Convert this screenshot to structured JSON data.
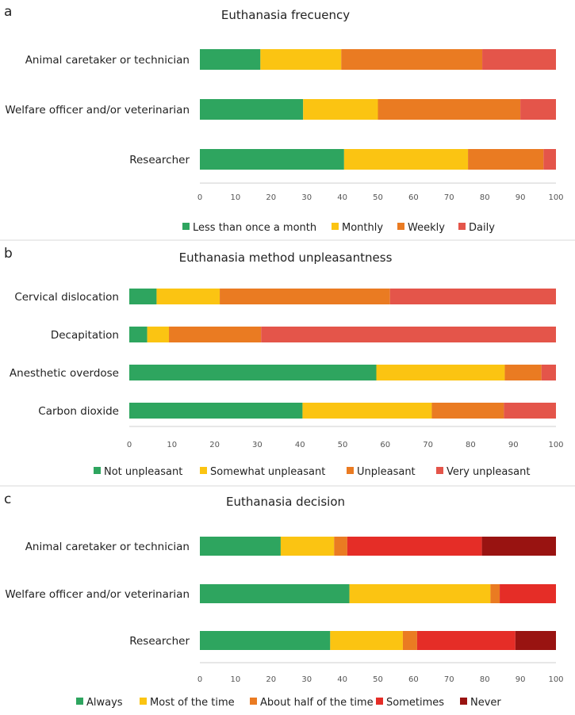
{
  "chart_data": [
    {
      "panel_letter": "a",
      "type": "bar",
      "orientation": "horizontal",
      "stacked": true,
      "title": "Euthanasia frecuency",
      "categories": [
        "Animal caretaker or technician",
        "Welfare officer and/or veterinarian",
        "Researcher"
      ],
      "series": [
        {
          "name": "Less than once a month",
          "color": "#2ea55f",
          "values": [
            17,
            29,
            40.5
          ]
        },
        {
          "name": "Monthly",
          "color": "#fbc412",
          "values": [
            22.7,
            21,
            34.8
          ]
        },
        {
          "name": "Weekly",
          "color": "#ea7b22",
          "values": [
            39.6,
            40,
            21.2
          ]
        },
        {
          "name": "Daily",
          "color": "#e4554a",
          "values": [
            20.7,
            10,
            3.5
          ]
        }
      ],
      "xlim": [
        0,
        100
      ],
      "xticks": [
        "0",
        "10",
        "20",
        "30",
        "40",
        "50",
        "60",
        "70",
        "80",
        "90",
        "100"
      ],
      "grid": false,
      "legend_position": "bottom"
    },
    {
      "panel_letter": "b",
      "type": "bar",
      "orientation": "horizontal",
      "stacked": true,
      "title": "Euthanasia method unpleasantness",
      "categories": [
        "Cervical dislocation",
        "Decapitation",
        "Anesthetic overdose",
        "Carbon dioxide"
      ],
      "series": [
        {
          "name": "Not unpleasant",
          "color": "#2ea55f",
          "values": [
            6.4,
            4.2,
            57.9,
            40.6
          ]
        },
        {
          "name": "Somewhat unpleasant",
          "color": "#fbc412",
          "values": [
            14.8,
            5.1,
            30.1,
            30.3
          ]
        },
        {
          "name": "Unpleasant",
          "color": "#ea7b22",
          "values": [
            39.9,
            21.6,
            8.6,
            16.9
          ]
        },
        {
          "name": "Very unpleasant",
          "color": "#e4554a",
          "values": [
            38.9,
            69.1,
            3.4,
            12.2
          ]
        }
      ],
      "xlim": [
        0,
        100
      ],
      "xticks": [
        "0",
        "10",
        "20",
        "30",
        "40",
        "50",
        "60",
        "70",
        "80",
        "90",
        "100"
      ],
      "grid": false,
      "legend_position": "bottom"
    },
    {
      "panel_letter": "c",
      "type": "bar",
      "orientation": "horizontal",
      "stacked": true,
      "title": "Euthanasia decision",
      "categories": [
        "Animal caretaker or technician",
        "Welfare officer and/or veterinarian",
        "Researcher"
      ],
      "series": [
        {
          "name": "Always",
          "color": "#2ea55f",
          "values": [
            22.7,
            42,
            36.6
          ]
        },
        {
          "name": "Most of the time",
          "color": "#fbc412",
          "values": [
            15,
            39.6,
            20.4
          ]
        },
        {
          "name": "About half of the time",
          "color": "#ea7b22",
          "values": [
            3.7,
            2.6,
            4
          ]
        },
        {
          "name": "Sometimes",
          "color": "#e52d27",
          "values": [
            37.8,
            15.8,
            27.6
          ]
        },
        {
          "name": "Never",
          "color": "#991311",
          "values": [
            20.8,
            0,
            11.4
          ]
        }
      ],
      "xlim": [
        0,
        100
      ],
      "xticks": [
        "0",
        "10",
        "20",
        "30",
        "40",
        "50",
        "60",
        "70",
        "80",
        "90",
        "100"
      ],
      "grid": false,
      "legend_position": "bottom"
    }
  ]
}
